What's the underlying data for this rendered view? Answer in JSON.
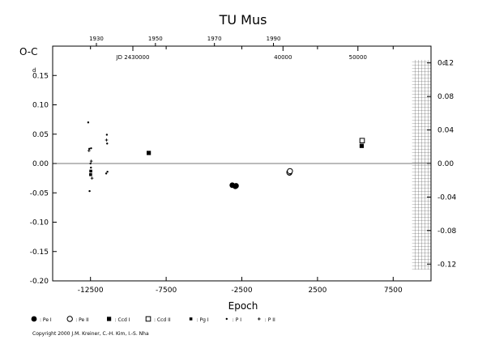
{
  "chart_data": {
    "type": "scatter",
    "title": "TU Mus",
    "xlabel": "Epoch",
    "ylabel": "O-C",
    "y_unit_left": "d",
    "y_unit_right": "d",
    "xlim": [
      -15000,
      10000
    ],
    "ylim_left": [
      -0.2,
      0.2
    ],
    "ylim_right": [
      -0.14,
      0.14
    ],
    "x_ticks": [
      "-12500",
      "-7500",
      "-2500",
      "2500",
      "7500"
    ],
    "x_tick_values": [
      -12500,
      -7500,
      -2500,
      2500,
      7500
    ],
    "y_ticks_left": [
      "0.15",
      "0.10",
      "0.05",
      "0.00",
      "-0.05",
      "-0.10",
      "-0.15",
      "-0.20"
    ],
    "y_tick_values_left": [
      0.15,
      0.1,
      0.05,
      0.0,
      -0.05,
      -0.1,
      -0.15,
      -0.2
    ],
    "y_ticks_right": [
      "0.12",
      "0.08",
      "0.04",
      "0.00",
      "-0.04",
      "-0.08",
      "-0.12"
    ],
    "y_tick_values_right": [
      0.12,
      0.08,
      0.04,
      0.0,
      -0.04,
      -0.08,
      -0.12
    ],
    "year_axis": {
      "ticks": [
        "1930",
        "1950",
        "1970",
        "1990"
      ],
      "epochs": [
        -12110,
        -8210,
        -4310,
        -410
      ]
    },
    "jd_axis": {
      "ticks": [
        "JD 2430000",
        "40000",
        "50000"
      ],
      "epochs": [
        -9700,
        220,
        5170
      ]
    },
    "future_zone_start": 8750,
    "series": [
      {
        "name": "Pe I",
        "marker": "filled-circle",
        "points": [
          [
            -3130,
            -0.037
          ],
          [
            -2930,
            -0.039
          ],
          [
            -2880,
            -0.038
          ],
          [
            650,
            -0.016
          ]
        ]
      },
      {
        "name": "Pe II",
        "marker": "open-circle",
        "points": [
          [
            640,
            -0.015
          ],
          [
            680,
            -0.013
          ]
        ]
      },
      {
        "name": "Ccd I",
        "marker": "filled-square",
        "points": [
          [
            -8650,
            0.018
          ],
          [
            5420,
            0.03
          ]
        ]
      },
      {
        "name": "Ccd II",
        "marker": "open-square",
        "points": [
          [
            5450,
            0.039
          ]
        ]
      },
      {
        "name": "Pg I",
        "marker": "small-filled-square",
        "points": [
          [
            -12480,
            -0.013
          ],
          [
            -12490,
            -0.019
          ]
        ]
      },
      {
        "name": "P I",
        "marker": "dot",
        "points": [
          [
            -12650,
            0.07
          ],
          [
            -12580,
            0.025
          ],
          [
            -12460,
            0.026
          ],
          [
            -12500,
            0.0
          ],
          [
            -12470,
            -0.007
          ],
          [
            -12560,
            -0.047
          ],
          [
            -11420,
            0.049
          ],
          [
            -11400,
            0.034
          ],
          [
            -11380,
            -0.014
          ],
          [
            -11460,
            -0.017
          ]
        ]
      },
      {
        "name": "P II",
        "marker": "plus",
        "points": [
          [
            -12600,
            0.022
          ],
          [
            -12450,
            0.004
          ],
          [
            -12400,
            -0.025
          ],
          [
            -11440,
            0.04
          ]
        ]
      }
    ]
  },
  "legend": [
    {
      "symbol": "●",
      "label": ": Pe I"
    },
    {
      "symbol": "○",
      "label": ": Pe II"
    },
    {
      "symbol": "■",
      "label": ": Ccd I"
    },
    {
      "symbol": "□",
      "label": ": Ccd II"
    },
    {
      "symbol": "▪",
      "label": ": Pg I"
    },
    {
      "symbol": "•",
      "label": ": P I"
    },
    {
      "symbol": "+",
      "label": ": P II"
    }
  ],
  "copyright": "Copyright 2000 J.M. Kreiner, C.-H. Kim, I.-S. Nha"
}
